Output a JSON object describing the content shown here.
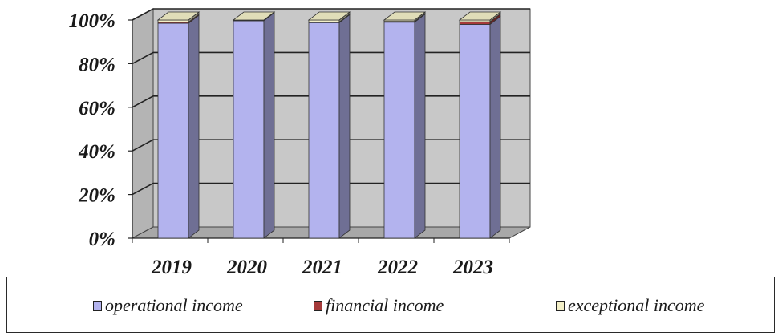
{
  "chart_data": {
    "type": "bar",
    "stacked": true,
    "percent": true,
    "three_d": true,
    "categories": [
      "2019",
      "2020",
      "2021",
      "2022",
      "2023"
    ],
    "series": [
      {
        "name": "operational income",
        "color": "#b3b3ee",
        "values": [
          98.5,
          99.7,
          98.8,
          99.0,
          98.0
        ]
      },
      {
        "name": "financial income",
        "color": "#a53a3a",
        "values": [
          0.5,
          0.1,
          0.3,
          0.4,
          1.2
        ]
      },
      {
        "name": "exceptional income",
        "color": "#f4f0c8",
        "values": [
          1.0,
          0.2,
          0.9,
          0.6,
          0.8
        ]
      }
    ],
    "y_ticks": [
      "0%",
      "20%",
      "40%",
      "60%",
      "80%",
      "100%"
    ],
    "ylim": [
      0,
      100
    ],
    "grid": true,
    "legend_position": "bottom",
    "plot_background": "#c8c8c8"
  }
}
